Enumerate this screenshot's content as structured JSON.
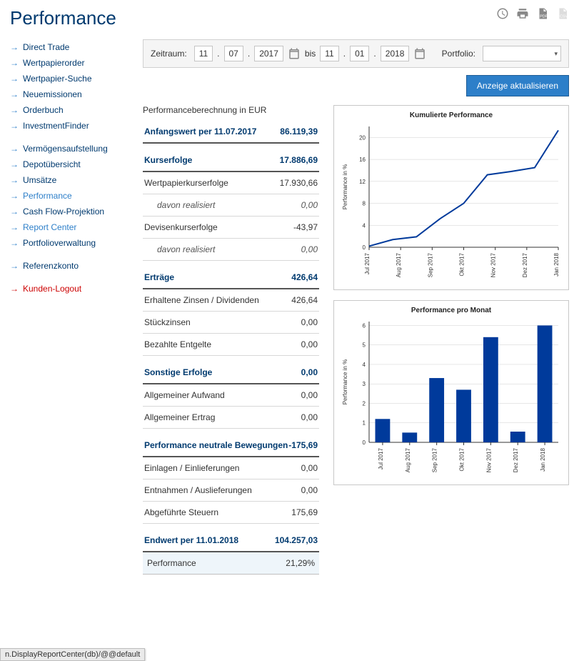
{
  "header": {
    "title": "Performance",
    "icons": [
      "clock-icon",
      "print-icon",
      "pdf-icon",
      "csv-icon"
    ]
  },
  "sidebar": {
    "groups": [
      {
        "items": [
          {
            "label": "Direct Trade",
            "key": "direct-trade"
          },
          {
            "label": "Wertpapierorder",
            "key": "wertpapierorder"
          },
          {
            "label": "Wertpapier-Suche",
            "key": "wertpapier-suche"
          },
          {
            "label": "Neuemissionen",
            "key": "neuemissionen"
          },
          {
            "label": "Orderbuch",
            "key": "orderbuch"
          },
          {
            "label": "InvestmentFinder",
            "key": "investmentfinder"
          }
        ]
      },
      {
        "items": [
          {
            "label": "Vermögensaufstellung",
            "key": "vermoegensaufstellung"
          },
          {
            "label": "Depotübersicht",
            "key": "depotuebersicht"
          },
          {
            "label": "Umsätze",
            "key": "umsaetze"
          },
          {
            "label": "Performance",
            "key": "performance",
            "active": true
          },
          {
            "label": "Cash Flow-Projektion",
            "key": "cash-flow-projektion"
          },
          {
            "label": "Report Center",
            "key": "report-center",
            "active": true
          },
          {
            "label": "Portfolioverwaltung",
            "key": "portfolioverwaltung"
          }
        ]
      },
      {
        "items": [
          {
            "label": "Referenzkonto",
            "key": "referenzkonto"
          }
        ]
      },
      {
        "items": [
          {
            "label": "Kunden-Logout",
            "key": "kunden-logout",
            "logout": true
          }
        ]
      }
    ]
  },
  "filter": {
    "zeitraum_label": "Zeitraum:",
    "from": {
      "day": "11",
      "month": "07",
      "year": "2017"
    },
    "bis_label": "bis",
    "to": {
      "day": "11",
      "month": "01",
      "year": "2018"
    },
    "portfolio_label": "Portfolio:",
    "update_button": "Anzeige aktualisieren"
  },
  "performance": {
    "section_title": "Performanceberechnung in EUR",
    "rows": [
      {
        "type": "head",
        "label": "Anfangswert per 11.07.2017",
        "value": "86.119,39"
      },
      {
        "type": "head",
        "label": "Kurserfolge",
        "value": "17.886,69"
      },
      {
        "type": "sub",
        "label": "Wertpapierkurserfolge",
        "value": "17.930,66"
      },
      {
        "type": "ital",
        "label": "davon realisiert",
        "value": "0,00"
      },
      {
        "type": "sub",
        "label": "Devisenkurserfolge",
        "value": "-43,97"
      },
      {
        "type": "ital",
        "label": "davon realisiert",
        "value": "0,00"
      },
      {
        "type": "head",
        "label": "Erträge",
        "value": "426,64"
      },
      {
        "type": "sub",
        "label": "Erhaltene Zinsen / Dividenden",
        "value": "426,64"
      },
      {
        "type": "sub",
        "label": "Stückzinsen",
        "value": "0,00"
      },
      {
        "type": "sub",
        "label": "Bezahlte Entgelte",
        "value": "0,00"
      },
      {
        "type": "head",
        "label": "Sonstige Erfolge",
        "value": "0,00"
      },
      {
        "type": "sub",
        "label": "Allgemeiner Aufwand",
        "value": "0,00"
      },
      {
        "type": "sub",
        "label": "Allgemeiner Ertrag",
        "value": "0,00"
      },
      {
        "type": "head",
        "label": "Performance neutrale Bewegungen",
        "value": "-175,69"
      },
      {
        "type": "sub",
        "label": "Einlagen / Einlieferungen",
        "value": "0,00"
      },
      {
        "type": "sub",
        "label": "Entnahmen / Auslieferungen",
        "value": "0,00"
      },
      {
        "type": "sub",
        "label": "Abgeführte Steuern",
        "value": "175,69"
      },
      {
        "type": "head",
        "label": "Endwert per 11.01.2018",
        "value": "104.257,03"
      },
      {
        "type": "final",
        "label": "Performance",
        "value": "21,29%"
      }
    ]
  },
  "charts": {
    "line": {
      "title": "Kumulierte Performance",
      "type": "line",
      "ylabel": "Performance in %",
      "ylim": [
        0,
        22
      ],
      "ytick_step": 4,
      "categories": [
        "Jul 2017",
        "Aug 2017",
        "Sep 2017",
        "Okt 2017",
        "Nov 2017",
        "Dez 2017",
        "Jan 2018"
      ],
      "values": [
        0.2,
        1.4,
        1.9,
        5.2,
        8.0,
        13.2,
        13.8,
        14.5,
        21.3
      ],
      "line_color": "#003a9b",
      "line_width": 2,
      "grid_color": "#cfcfcf",
      "axis_color": "#333333",
      "background_color": "#ffffff",
      "label_fontsize": 8,
      "title_fontsize": 9
    },
    "bar": {
      "title": "Performance pro Monat",
      "type": "bar",
      "ylabel": "Performance in %",
      "ylim": [
        0,
        6.2
      ],
      "ytick_step": 1,
      "categories": [
        "Jul 2017",
        "Aug 2017",
        "Sep 2017",
        "Okt 2017",
        "Nov 2017",
        "Dez 2017",
        "Jan 2018"
      ],
      "values": [
        1.2,
        0.5,
        3.3,
        2.7,
        5.4,
        0.55,
        6.0
      ],
      "bar_color": "#003a9b",
      "bar_width": 0.55,
      "grid_color": "#cfcfcf",
      "axis_color": "#333333",
      "background_color": "#ffffff",
      "label_fontsize": 8,
      "title_fontsize": 9
    }
  },
  "status_bar": "n.DisplayReportCenter(db)/@@default"
}
